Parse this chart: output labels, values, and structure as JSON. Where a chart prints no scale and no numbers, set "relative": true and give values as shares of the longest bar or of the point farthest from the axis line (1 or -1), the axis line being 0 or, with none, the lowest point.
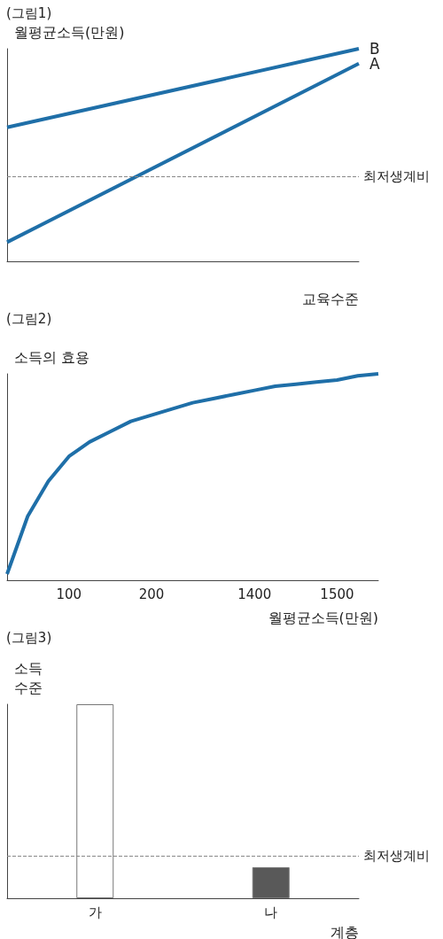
{
  "chart_data": [
    {
      "type": "line",
      "title": "(그림1)",
      "xlabel": "교육수준",
      "ylabel": "월평균소득(만원)",
      "categories": [
        null,
        null
      ],
      "relative": true,
      "marker": "none",
      "series": [
        {
          "name": "B",
          "color": "#1f6fa8",
          "values": [
            0.63,
            1
          ]
        },
        {
          "name": "A",
          "color": "#1f6fa8",
          "values": [
            0.09,
            0.93
          ]
        }
      ],
      "ref_lines": [
        {
          "axis": "y",
          "value": 0.4,
          "label": "최저생계비",
          "line_style": "dashed"
        }
      ]
    },
    {
      "type": "line",
      "title": "(그림2)",
      "xlabel": "월평균소득(만원)",
      "ylabel": "소득의 효용",
      "relative": true,
      "marker": "none",
      "categories": [
        null,
        null,
        null,
        "100",
        null,
        null,
        null,
        "200",
        null,
        null,
        null,
        null,
        "1400",
        null,
        null,
        null,
        "1500",
        null,
        null
      ],
      "series": [
        {
          "color": "#1f6fa8",
          "values": [
            0.03,
            0.31,
            0.48,
            0.6,
            0.67,
            0.72,
            0.77,
            0.8,
            0.83,
            0.86,
            0.88,
            0.9,
            0.92,
            0.94,
            0.95,
            0.96,
            0.97,
            0.99,
            1
          ]
        }
      ]
    },
    {
      "type": "bar",
      "title": "(그림3)",
      "xlabel": "계층",
      "ylabel": "소득\n수준",
      "relative": true,
      "categories": [
        "가",
        "나"
      ],
      "values": [
        1,
        0.16
      ],
      "colors": [
        "#ffffff",
        "#595959"
      ],
      "ref_lines": [
        {
          "axis": "y",
          "value": 0.22,
          "label": "최저생계비",
          "line_style": "dashed"
        }
      ]
    }
  ]
}
